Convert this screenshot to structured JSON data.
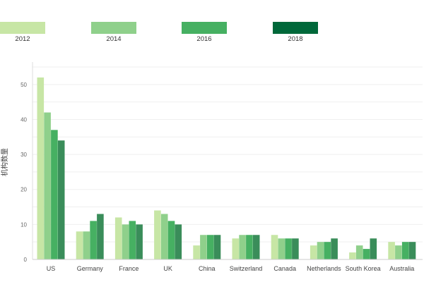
{
  "chart_data": {
    "type": "bar",
    "categories": [
      "US",
      "Germany",
      "France",
      "UK",
      "China",
      "Switzerland",
      "Canada",
      "Netherlands",
      "South Korea",
      "Australia"
    ],
    "series": [
      {
        "name": "2012",
        "color": "#c7e6a5",
        "values": [
          52,
          8,
          12,
          14,
          4,
          6,
          7,
          4,
          2,
          5
        ]
      },
      {
        "name": "2014",
        "color": "#8fd08b",
        "values": [
          42,
          8,
          10,
          13,
          7,
          7,
          6,
          5,
          4,
          4
        ]
      },
      {
        "name": "2016",
        "color": "#46b062",
        "values": [
          37,
          11,
          11,
          11,
          7,
          7,
          6,
          5,
          3,
          5
        ]
      },
      {
        "name": "2018",
        "color": "#00683a",
        "values": [
          34,
          13,
          10,
          10,
          7,
          7,
          6,
          6,
          6,
          5
        ]
      }
    ],
    "series_display_colors": [
      "#c7e6a5",
      "#8fd08b",
      "#46b062",
      "#3a8d5a"
    ],
    "ylabel": "机构数量",
    "ylim": [
      0,
      55
    ],
    "yticks": [
      0,
      10,
      20,
      30,
      40,
      50
    ],
    "grid": true,
    "legend_position": "top"
  }
}
